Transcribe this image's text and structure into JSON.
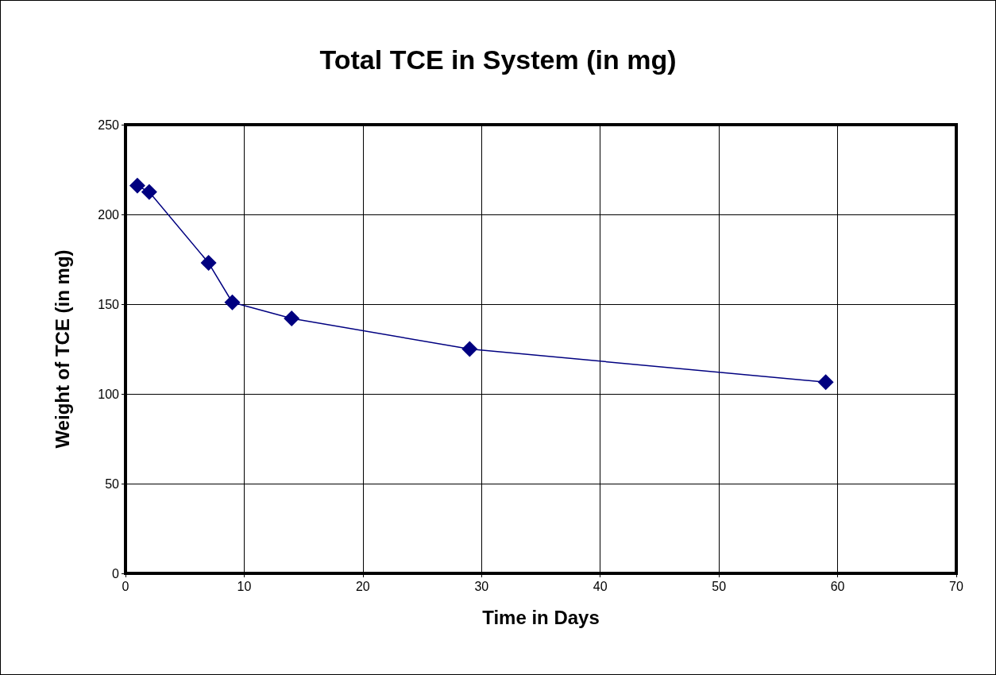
{
  "chart_data": {
    "type": "line",
    "title": "Total TCE in System (in mg)",
    "xlabel": "Time in Days",
    "ylabel": "Weight of TCE (in mg)",
    "x": [
      1,
      2,
      7,
      9,
      14,
      29,
      59
    ],
    "series": [
      {
        "color": "#000080",
        "values": [
          216,
          212.5,
          173,
          151,
          142,
          125,
          106.5
        ]
      }
    ],
    "xlim": [
      0,
      70
    ],
    "xticks": [
      0,
      10,
      20,
      30,
      40,
      50,
      60,
      70
    ],
    "ylim": [
      0,
      250
    ],
    "yticks": [
      0,
      50,
      100,
      150,
      200,
      250
    ],
    "grid": true,
    "marker": "diamond",
    "line_style": "solid"
  }
}
